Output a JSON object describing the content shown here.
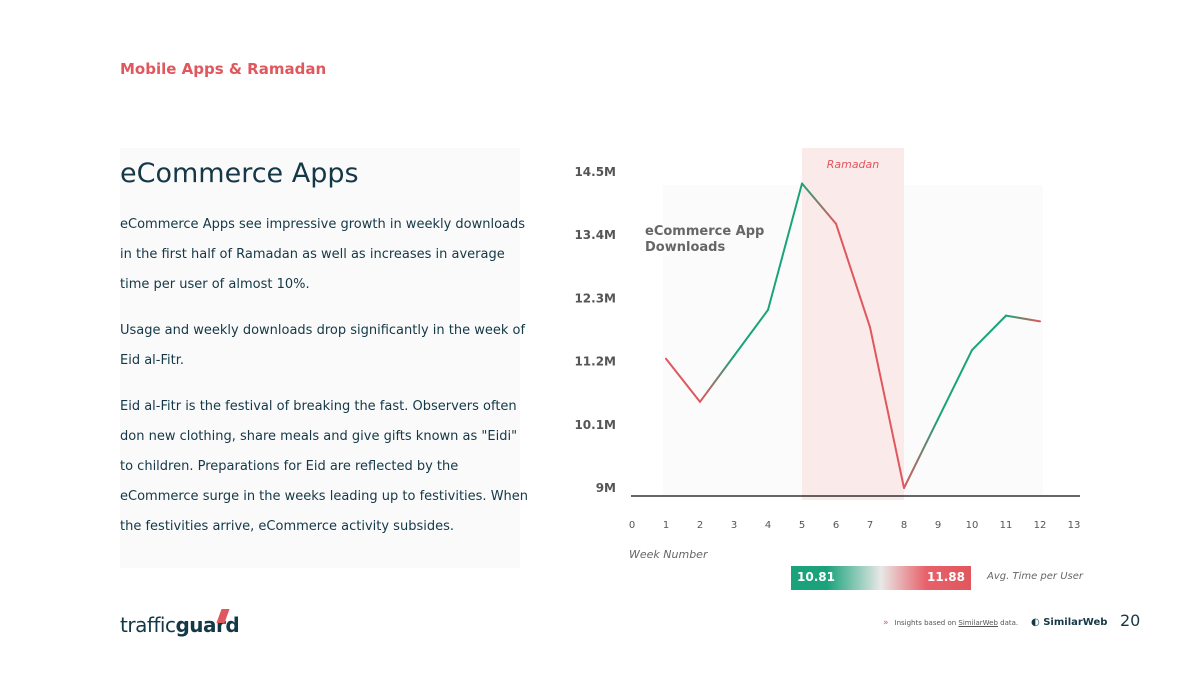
{
  "header": {
    "section": "Mobile Apps & Ramadan"
  },
  "content": {
    "title": "eCommerce Apps",
    "paragraphs": [
      "eCommerce Apps see impressive growth in weekly downloads in the first half of Ramadan as well as increases in average time per user of almost 10%.",
      "Usage and weekly downloads drop significantly in the week of Eid al-Fitr.",
      "Eid al-Fitr is the festival of breaking the fast. Observers often don new clothing, share meals and give gifts known as \"Eidi\" to children. Preparations for Eid are reflected by the eCommerce surge in the weeks leading up to festivities. When the festivities arrive, eCommerce activity subsides."
    ]
  },
  "chart_data": {
    "type": "line",
    "title": "",
    "series_label": [
      "eCommerce App",
      "Downloads"
    ],
    "xlabel": "Week Number",
    "ylabel": "",
    "xlim": [
      0,
      13
    ],
    "ylim": [
      9,
      14.5
    ],
    "x_ticks": [
      0,
      1,
      2,
      3,
      4,
      5,
      6,
      7,
      8,
      9,
      10,
      11,
      12,
      13
    ],
    "y_ticks": [
      {
        "value": 9,
        "label": "9M"
      },
      {
        "value": 10.1,
        "label": "10.1M"
      },
      {
        "value": 11.2,
        "label": "11.2M"
      },
      {
        "value": 12.3,
        "label": "12.3M"
      },
      {
        "value": 13.4,
        "label": "13.4M"
      },
      {
        "value": 14.5,
        "label": "14.5M"
      }
    ],
    "x": [
      1,
      2,
      3,
      4,
      5,
      6,
      7,
      8,
      9,
      10,
      11,
      12
    ],
    "values": [
      11.25,
      10.5,
      11.3,
      12.1,
      14.3,
      13.6,
      11.8,
      9.0,
      10.2,
      11.4,
      12.0,
      11.9
    ],
    "highlight": {
      "label": "Ramadan",
      "from": 5,
      "to": 8
    },
    "grid": false,
    "colors": {
      "up": "#1aa37a",
      "down": "#e0575d",
      "highlight": "#fbeaea"
    }
  },
  "avg_time": {
    "min": "10.81",
    "max": "11.88",
    "label": "Avg. Time per User"
  },
  "footer": {
    "logo_light": "traffic",
    "logo_bold": "guard",
    "source_prefix": "Insights based on ",
    "source_link": "SimilarWeb",
    "source_suffix": " data.",
    "similarweb": "SimilarWeb",
    "page": "20"
  }
}
